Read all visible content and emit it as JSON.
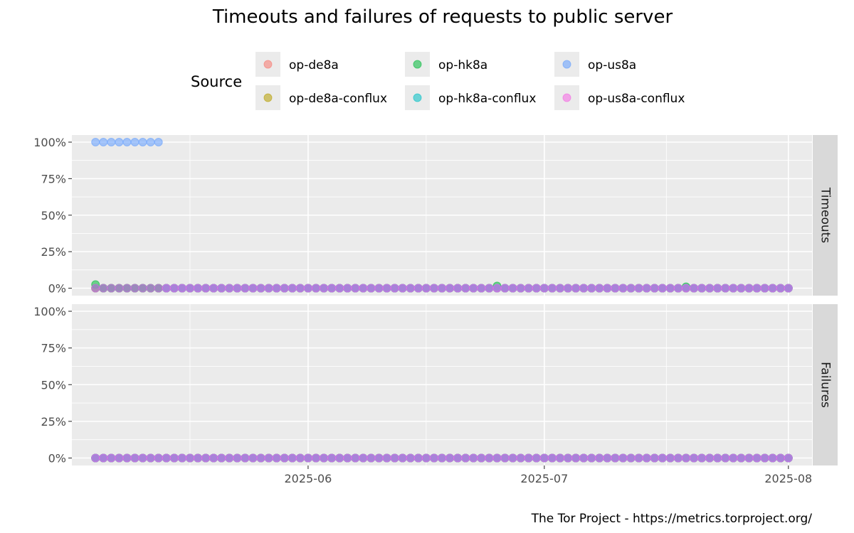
{
  "chart_data": {
    "type": "scatter",
    "title": "Timeouts and failures of requests to public server",
    "caption": "The Tor Project - https://metrics.torproject.org/",
    "legend": {
      "title": "Source",
      "placement": "top",
      "entries": [
        {
          "name": "op-de8a",
          "color": "#F8766D"
        },
        {
          "name": "op-de8a-conflux",
          "color": "#B79F00"
        },
        {
          "name": "op-hk8a",
          "color": "#00BA38"
        },
        {
          "name": "op-hk8a-conflux",
          "color": "#00BFC4"
        },
        {
          "name": "op-us8a",
          "color": "#619CFF"
        },
        {
          "name": "op-us8a-conflux",
          "color": "#F564E3"
        }
      ]
    },
    "x_axis": {
      "type": "date",
      "range": [
        "2025-05-02",
        "2025-08-04"
      ],
      "ticks": [
        {
          "date": "2025-06-01",
          "label": "2025-06"
        },
        {
          "date": "2025-07-01",
          "label": "2025-07"
        },
        {
          "date": "2025-08-01",
          "label": "2025-08"
        }
      ]
    },
    "y_axis": {
      "range": [
        0,
        1
      ],
      "ticks": [
        {
          "value": 0,
          "label": "0%"
        },
        {
          "value": 0.25,
          "label": "25%"
        },
        {
          "value": 0.5,
          "label": "50%"
        },
        {
          "value": 0.75,
          "label": "75%"
        },
        {
          "value": 1,
          "label": "100%"
        }
      ]
    },
    "grid": true,
    "date_start": "2025-05-05",
    "date_end": "2025-08-01",
    "panels": [
      {
        "strip": "Timeouts",
        "series": [
          {
            "name": "op-de8a",
            "default": 0.0,
            "overrides": []
          },
          {
            "name": "op-de8a-conflux",
            "default": 0.0,
            "overrides": []
          },
          {
            "name": "op-hk8a",
            "default": 0.0,
            "overrides": [
              {
                "date": "2025-05-05",
                "value": 0.025
              },
              {
                "date": "2025-06-25",
                "value": 0.015
              },
              {
                "date": "2025-07-19",
                "value": 0.01
              }
            ]
          },
          {
            "name": "op-hk8a-conflux",
            "default": 0.0,
            "overrides": []
          },
          {
            "name": "op-us8a",
            "default": 0.0,
            "overrides": [
              {
                "date": "2025-05-05",
                "value": 1.0
              },
              {
                "date": "2025-05-06",
                "value": 1.0
              },
              {
                "date": "2025-05-07",
                "value": 1.0
              },
              {
                "date": "2025-05-08",
                "value": 1.0
              },
              {
                "date": "2025-05-09",
                "value": 1.0
              },
              {
                "date": "2025-05-10",
                "value": 1.0
              },
              {
                "date": "2025-05-11",
                "value": 1.0
              },
              {
                "date": "2025-05-12",
                "value": 1.0
              },
              {
                "date": "2025-05-13",
                "value": 1.0
              }
            ]
          },
          {
            "name": "op-us8a-conflux",
            "default": 0.0,
            "overrides": []
          }
        ]
      },
      {
        "strip": "Failures",
        "series": [
          {
            "name": "op-de8a",
            "default": 0.0,
            "overrides": []
          },
          {
            "name": "op-de8a-conflux",
            "default": 0.0,
            "overrides": []
          },
          {
            "name": "op-hk8a",
            "default": 0.0,
            "overrides": []
          },
          {
            "name": "op-hk8a-conflux",
            "default": 0.0,
            "overrides": []
          },
          {
            "name": "op-us8a",
            "default": 0.0,
            "overrides": []
          },
          {
            "name": "op-us8a-conflux",
            "default": 0.0,
            "overrides": []
          }
        ]
      }
    ]
  }
}
